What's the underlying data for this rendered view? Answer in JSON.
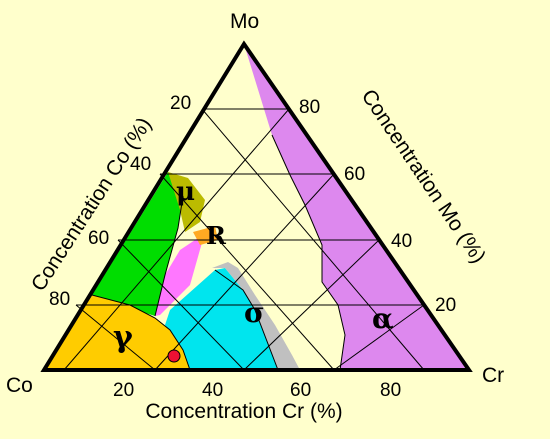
{
  "diagram": {
    "corners": {
      "top": "Mo",
      "left": "Co",
      "right": "Cr"
    },
    "axes": {
      "left": {
        "title": "Concentration Co (%)",
        "ticks": [
          "80",
          "60",
          "40",
          "20"
        ]
      },
      "right": {
        "title": "Concentration  Mo (%)",
        "ticks": [
          "80",
          "60",
          "40",
          "20"
        ]
      },
      "bottom": {
        "title": "Concentration  Cr (%)",
        "ticks": [
          "20",
          "40",
          "60",
          "80"
        ]
      }
    },
    "phases": {
      "gamma": "γ",
      "mu": "μ",
      "R": "R",
      "sigma": "σ",
      "alpha": "α"
    },
    "colors": {
      "background": "#ffffcc",
      "alpha": "#dd88ee",
      "gamma": "#ffcc00",
      "green_region": "#00dd00",
      "mu": "#bbbb00",
      "R": "#ffaa22",
      "pink_region": "#ff77ff",
      "cyan_region": "#00e5ee",
      "sigma": "#c0c0c0",
      "marker": "#ee1133"
    }
  }
}
